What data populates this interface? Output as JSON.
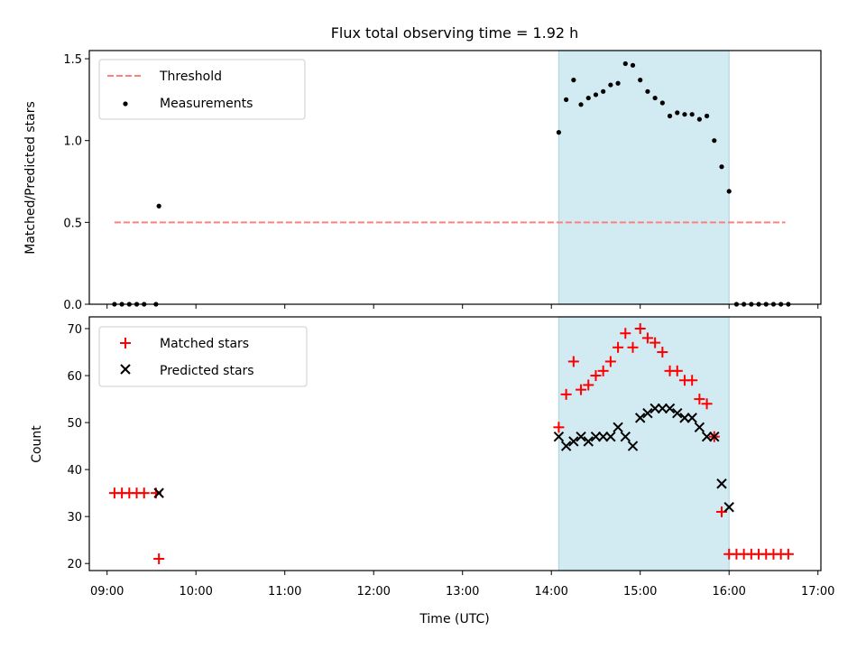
{
  "chart_data": [
    {
      "type": "scatter",
      "title": "Flux total observing time = 1.92 h",
      "ylabel": "Matched/Predicted stars",
      "xlabel": "",
      "ylim": [
        0,
        1.55
      ],
      "yticks": [
        0.0,
        0.5,
        1.0,
        1.5
      ],
      "ytick_labels": [
        "0.0",
        "0.5",
        "1.0",
        "1.5"
      ],
      "legend": {
        "placement": "top-left",
        "entries": [
          "Threshold",
          "Measurements"
        ]
      },
      "threshold": {
        "name": "Threshold",
        "value": 0.5,
        "x_start": "09:05",
        "x_end": "16:38",
        "color": "#ff7f7f"
      },
      "shaded_span": {
        "x_start": "14:05",
        "x_end": "16:00",
        "color": "#add8e6"
      },
      "series": [
        {
          "name": "Measurements",
          "marker": "dot",
          "color": "#000000",
          "x": [
            "09:05",
            "09:10",
            "09:15",
            "09:20",
            "09:25",
            "09:33",
            "09:35",
            "14:05",
            "14:10",
            "14:15",
            "14:20",
            "14:25",
            "14:30",
            "14:35",
            "14:40",
            "14:45",
            "14:50",
            "14:55",
            "15:00",
            "15:05",
            "15:10",
            "15:15",
            "15:20",
            "15:25",
            "15:30",
            "15:35",
            "15:40",
            "15:45",
            "15:50",
            "15:55",
            "16:00",
            "16:05",
            "16:10",
            "16:15",
            "16:20",
            "16:25",
            "16:30",
            "16:35",
            "16:40"
          ],
          "y": [
            0.0,
            0.0,
            0.0,
            0.0,
            0.0,
            0.0,
            0.6,
            1.05,
            1.25,
            1.37,
            1.22,
            1.26,
            1.28,
            1.3,
            1.34,
            1.35,
            1.47,
            1.46,
            1.37,
            1.3,
            1.26,
            1.23,
            1.15,
            1.17,
            1.16,
            1.16,
            1.13,
            1.15,
            1.0,
            0.84,
            0.69,
            0.0,
            0.0,
            0.0,
            0.0,
            0.0,
            0.0,
            0.0,
            0.0
          ]
        }
      ]
    },
    {
      "type": "scatter",
      "title": "",
      "ylabel": "Count",
      "xlabel": "Time (UTC)",
      "ylim": [
        18.5,
        72.5
      ],
      "yticks": [
        20,
        30,
        40,
        50,
        60,
        70
      ],
      "ytick_labels": [
        "20",
        "30",
        "40",
        "50",
        "60",
        "70"
      ],
      "xticks": [
        "09:00",
        "10:00",
        "11:00",
        "12:00",
        "13:00",
        "14:00",
        "15:00",
        "16:00",
        "17:00"
      ],
      "xlim": [
        "08:48",
        "17:02"
      ],
      "legend": {
        "placement": "top-left",
        "entries": [
          "Matched stars",
          "Predicted stars"
        ]
      },
      "shaded_span": {
        "x_start": "14:05",
        "x_end": "16:00",
        "color": "#add8e6"
      },
      "series": [
        {
          "name": "Matched stars",
          "marker": "plus",
          "color": "#ff0000",
          "x": [
            "09:05",
            "09:10",
            "09:15",
            "09:20",
            "09:25",
            "09:33",
            "09:35",
            "14:05",
            "14:10",
            "14:15",
            "14:20",
            "14:25",
            "14:30",
            "14:35",
            "14:40",
            "14:45",
            "14:50",
            "14:55",
            "15:00",
            "15:05",
            "15:10",
            "15:15",
            "15:20",
            "15:25",
            "15:30",
            "15:35",
            "15:40",
            "15:45",
            "15:50",
            "15:55",
            "16:00",
            "16:05",
            "16:10",
            "16:15",
            "16:20",
            "16:25",
            "16:30",
            "16:35",
            "16:40"
          ],
          "y": [
            35,
            35,
            35,
            35,
            35,
            35,
            21,
            49,
            56,
            63,
            57,
            58,
            60,
            61,
            63,
            66,
            69,
            66,
            70,
            68,
            67,
            65,
            61,
            61,
            59,
            59,
            55,
            54,
            47,
            31,
            22,
            22,
            22,
            22,
            22,
            22,
            22,
            22,
            22
          ]
        },
        {
          "name": "Predicted stars",
          "marker": "x",
          "color": "#000000",
          "x": [
            "09:35",
            "14:05",
            "14:10",
            "14:15",
            "14:20",
            "14:25",
            "14:30",
            "14:35",
            "14:40",
            "14:45",
            "14:50",
            "14:55",
            "15:00",
            "15:05",
            "15:10",
            "15:15",
            "15:20",
            "15:25",
            "15:30",
            "15:35",
            "15:40",
            "15:45",
            "15:50",
            "15:55",
            "16:00"
          ],
          "y": [
            35,
            47,
            45,
            46,
            47,
            46,
            47,
            47,
            47,
            49,
            47,
            45,
            51,
            52,
            53,
            53,
            53,
            52,
            51,
            51,
            49,
            47,
            47,
            37,
            32
          ]
        }
      ]
    }
  ]
}
